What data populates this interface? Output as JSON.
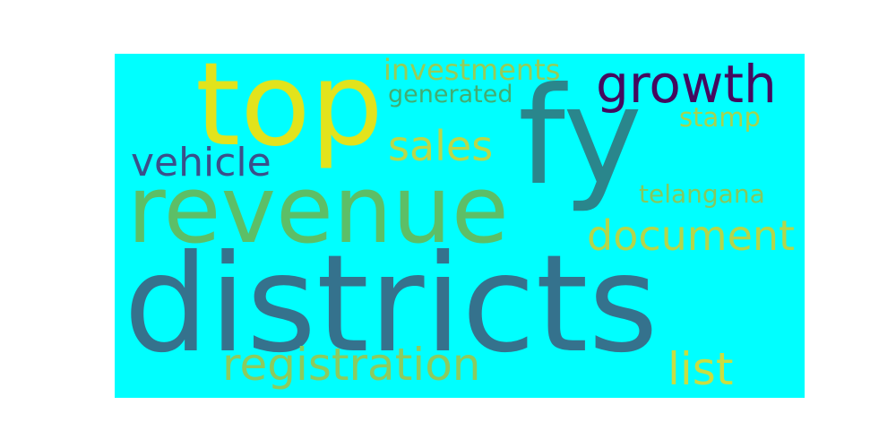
{
  "background_color": "#00ffff",
  "words": [
    {
      "text": "districts",
      "color": "#35728d"
    },
    {
      "text": "revenue",
      "color": "#5cbf67"
    },
    {
      "text": "top",
      "color": "#e2e31c"
    },
    {
      "text": "fy",
      "color": "#2a868c"
    },
    {
      "text": "growth",
      "color": "#440a5e"
    },
    {
      "text": "registration",
      "color": "#8ccb5e"
    },
    {
      "text": "document",
      "color": "#b4d64a"
    },
    {
      "text": "list",
      "color": "#c9de41"
    },
    {
      "text": "sales",
      "color": "#b9d84a"
    },
    {
      "text": "vehicle",
      "color": "#3b4f8a"
    },
    {
      "text": "investments",
      "color": "#97cc57"
    },
    {
      "text": "generated",
      "color": "#43ad72"
    },
    {
      "text": "stamp",
      "color": "#a6d34f"
    },
    {
      "text": "telangana",
      "color": "#84c95f"
    }
  ]
}
